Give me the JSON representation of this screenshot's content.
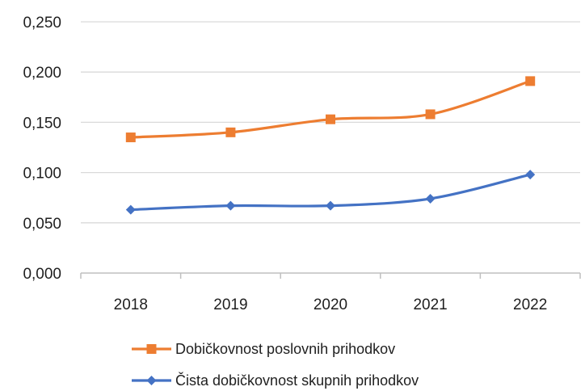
{
  "chart_data": {
    "type": "line",
    "title": "",
    "xlabel": "",
    "ylabel": "",
    "categories": [
      "2018",
      "2019",
      "2020",
      "2021",
      "2022"
    ],
    "y_ticks": [
      "0,000",
      "0,050",
      "0,100",
      "0,150",
      "0,200",
      "0,250"
    ],
    "ylim": [
      0,
      0.25
    ],
    "grid": true,
    "legend_position": "bottom",
    "series": [
      {
        "name": "Dobičkovnost poslovnih prihodkov",
        "values": [
          0.135,
          0.14,
          0.153,
          0.158,
          0.191
        ],
        "color": "#ED7D31",
        "marker": "square"
      },
      {
        "name": "Čista dobičkovnost skupnih prihodkov",
        "values": [
          0.063,
          0.067,
          0.067,
          0.074,
          0.098
        ],
        "color": "#4472C4",
        "marker": "diamond"
      }
    ]
  }
}
